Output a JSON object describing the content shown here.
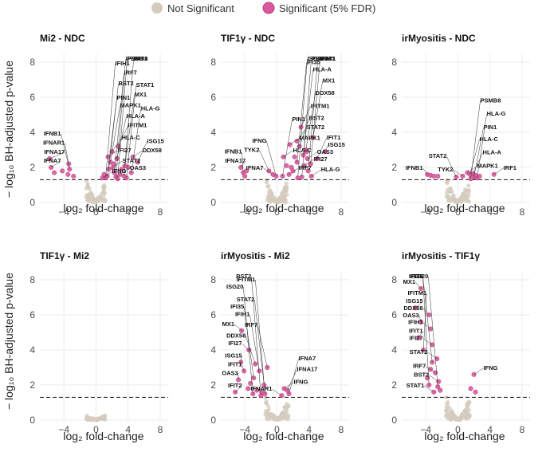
{
  "legend": [
    {
      "label": "Not Significant",
      "color": "#d4cbbd"
    },
    {
      "label": "Significant (5% FDR)",
      "color": "#d9599b"
    }
  ],
  "axis_titles": {
    "x": "log₂ fold-change",
    "y": "− log₁₀ BH-adjusted p-value"
  },
  "colors": {
    "ns": "#d4cbbd",
    "sig": "#d9599b",
    "sig_stroke": "#b53c7d",
    "threshold": "#333333",
    "grid": "#ebebeb"
  },
  "chart_data": [
    {
      "type": "scatter",
      "title": "Mi2 - NDC",
      "xlim": [
        -7,
        9
      ],
      "ylim": [
        0,
        8.5
      ],
      "xticks": [
        -4,
        0,
        4,
        8
      ],
      "yticks": [
        0,
        2,
        4,
        6,
        8
      ],
      "threshold": 1.3,
      "ns_cloud": {
        "spread": 1.2,
        "height": 1.3,
        "count": 90
      },
      "significant": [
        {
          "x": -5.8,
          "y": 2.5,
          "label": "IFNA17"
        },
        {
          "x": -5.6,
          "y": 2.0,
          "label": "IFNA7"
        },
        {
          "x": -3.4,
          "y": 2.2,
          "label": "IFNAR1"
        },
        {
          "x": -3.3,
          "y": 1.9,
          "label": "IFNB1"
        },
        {
          "x": -3.5,
          "y": 1.6,
          "label": ""
        },
        {
          "x": -4.2,
          "y": 1.8,
          "label": ""
        },
        {
          "x": -2.8,
          "y": 1.5,
          "label": ""
        },
        {
          "x": -5.2,
          "y": 1.7,
          "label": ""
        },
        {
          "x": 1.5,
          "y": 2.6,
          "label": "IFI27"
        },
        {
          "x": 2.0,
          "y": 2.9,
          "label": "HLA-C"
        },
        {
          "x": 2.8,
          "y": 3.2,
          "label": "IFITM1"
        },
        {
          "x": 2.6,
          "y": 2.5,
          "label": "HLA-A"
        },
        {
          "x": 1.8,
          "y": 2.3,
          "label": "MAPK1"
        },
        {
          "x": 2.1,
          "y": 2.0,
          "label": "STAT2"
        },
        {
          "x": 4.6,
          "y": 2.6,
          "label": "DDX58"
        },
        {
          "x": 3.6,
          "y": 2.1,
          "label": "MX1"
        },
        {
          "x": 5.2,
          "y": 2.3,
          "label": "ISG15"
        },
        {
          "x": 1.6,
          "y": 1.9,
          "label": "BST2"
        },
        {
          "x": 2.3,
          "y": 1.7,
          "label": "IRF7"
        },
        {
          "x": 3.0,
          "y": 1.6,
          "label": "OAS3"
        },
        {
          "x": 4.4,
          "y": 1.7,
          "label": "HLA-G"
        },
        {
          "x": 1.4,
          "y": 1.5,
          "label": "PIN1"
        },
        {
          "x": 1.2,
          "y": 1.4,
          "label": "IFIH1"
        },
        {
          "x": 2.5,
          "y": 1.45,
          "label": "IFI35"
        },
        {
          "x": 3.8,
          "y": 1.4,
          "label": "STAT1"
        },
        {
          "x": 3.5,
          "y": 1.5,
          "label": "IFIT1"
        },
        {
          "x": 2.7,
          "y": 1.35,
          "label": "PSMB8"
        },
        {
          "x": 0.8,
          "y": 1.4,
          "label": "IFNG"
        },
        {
          "x": 1.0,
          "y": 1.6,
          "label": ""
        },
        {
          "x": 3.2,
          "y": 1.9,
          "label": ""
        },
        {
          "x": 4.0,
          "y": 2.0,
          "label": ""
        },
        {
          "x": 2.2,
          "y": 2.2,
          "label": ""
        }
      ]
    },
    {
      "type": "scatter",
      "title": "TIF1γ - NDC",
      "xlim": [
        -7,
        9
      ],
      "ylim": [
        0,
        8.5
      ],
      "xticks": [
        -4,
        0,
        4,
        8
      ],
      "yticks": [
        0,
        2,
        4,
        6,
        8
      ],
      "threshold": 1.3,
      "ns_cloud": {
        "spread": 1.3,
        "height": 1.3,
        "count": 90
      },
      "significant": [
        {
          "x": -4.5,
          "y": 2.0,
          "label": "IFNA17"
        },
        {
          "x": -4.2,
          "y": 1.7,
          "label": "IFNB1"
        },
        {
          "x": -3.8,
          "y": 1.8,
          "label": ""
        },
        {
          "x": -4.0,
          "y": 1.5,
          "label": ""
        },
        {
          "x": -1.0,
          "y": 1.8,
          "label": "TYK2"
        },
        {
          "x": -0.5,
          "y": 1.6,
          "label": "IFNA7"
        },
        {
          "x": 0.8,
          "y": 2.6,
          "label": "HLA-C"
        },
        {
          "x": 1.6,
          "y": 3.3,
          "label": "MAPK1"
        },
        {
          "x": 2.5,
          "y": 3.5,
          "label": "STAT2"
        },
        {
          "x": 2.8,
          "y": 3.2,
          "label": "BST2"
        },
        {
          "x": 3.0,
          "y": 4.3,
          "label": "IFITM1"
        },
        {
          "x": 3.6,
          "y": 3.0,
          "label": "DDX58"
        },
        {
          "x": 4.5,
          "y": 3.7,
          "label": "MX1"
        },
        {
          "x": 3.8,
          "y": 2.5,
          "label": "OAS3"
        },
        {
          "x": 6.0,
          "y": 2.9,
          "label": "ISG15"
        },
        {
          "x": 5.0,
          "y": 2.5,
          "label": "IFIT1"
        },
        {
          "x": 3.3,
          "y": 2.7,
          "label": "HLA-A"
        },
        {
          "x": 2.5,
          "y": 2.3,
          "label": "IFI35"
        },
        {
          "x": 3.4,
          "y": 2.1,
          "label": "IFI27"
        },
        {
          "x": 4.2,
          "y": 2.2,
          "label": "IFIH1"
        },
        {
          "x": 3.9,
          "y": 1.8,
          "label": "STAT1"
        },
        {
          "x": 4.3,
          "y": 1.5,
          "label": "HLA-G"
        },
        {
          "x": 1.5,
          "y": 1.6,
          "label": "IRF7"
        },
        {
          "x": 0.7,
          "y": 1.5,
          "label": "PIN1"
        },
        {
          "x": 2.6,
          "y": 1.4,
          "label": "ISG20"
        },
        {
          "x": 3.1,
          "y": 1.45,
          "label": "PSMB8"
        },
        {
          "x": -0.1,
          "y": 1.5,
          "label": "IFNG"
        },
        {
          "x": 1.8,
          "y": 2.0,
          "label": ""
        },
        {
          "x": 2.0,
          "y": 1.8,
          "label": ""
        },
        {
          "x": 1.2,
          "y": 2.1,
          "label": ""
        },
        {
          "x": 2.2,
          "y": 2.6,
          "label": ""
        },
        {
          "x": 3.7,
          "y": 2.9,
          "label": ""
        }
      ]
    },
    {
      "type": "scatter",
      "title": "irMyositis - NDC",
      "xlim": [
        -7,
        9
      ],
      "ylim": [
        0,
        8.5
      ],
      "xticks": [
        -4,
        0,
        4,
        8
      ],
      "yticks": [
        0,
        2,
        4,
        6,
        8
      ],
      "threshold": 1.3,
      "ns_cloud": {
        "spread": 1.4,
        "height": 1.3,
        "count": 90
      },
      "significant": [
        {
          "x": -3.8,
          "y": 1.6,
          "label": "IFNB1"
        },
        {
          "x": -3.4,
          "y": 1.55,
          "label": ""
        },
        {
          "x": -3.0,
          "y": 1.5,
          "label": ""
        },
        {
          "x": -2.5,
          "y": 1.5,
          "label": ""
        },
        {
          "x": 1.2,
          "y": 1.7,
          "label": "MAPK1"
        },
        {
          "x": 1.9,
          "y": 1.65,
          "label": "HLA-A"
        },
        {
          "x": 1.5,
          "y": 1.6,
          "label": "HLA-C"
        },
        {
          "x": 0.6,
          "y": 1.5,
          "label": "TYK2"
        },
        {
          "x": -0.2,
          "y": 1.45,
          "label": "STAT2"
        },
        {
          "x": 2.0,
          "y": 1.45,
          "label": "PIN1"
        },
        {
          "x": 2.4,
          "y": 1.4,
          "label": "HLA-G"
        },
        {
          "x": 1.6,
          "y": 1.35,
          "label": "PSMB8"
        },
        {
          "x": 4.5,
          "y": 1.6,
          "label": "IRF1"
        },
        {
          "x": 2.2,
          "y": 1.55,
          "label": ""
        },
        {
          "x": 2.7,
          "y": 1.5,
          "label": ""
        }
      ]
    },
    {
      "type": "scatter",
      "title": "TIF1γ - Mi2",
      "xlim": [
        -7,
        9
      ],
      "ylim": [
        0,
        8.5
      ],
      "xticks": [
        -4,
        0,
        4,
        8
      ],
      "yticks": [
        0,
        2,
        4,
        6,
        8
      ],
      "threshold": 1.3,
      "ns_cloud": {
        "spread": 1.2,
        "height": 0.25,
        "count": 45
      },
      "significant": []
    },
    {
      "type": "scatter",
      "title": "irMyositis - Mi2",
      "xlim": [
        -7,
        9
      ],
      "ylim": [
        0,
        8.5
      ],
      "xticks": [
        -4,
        0,
        4,
        8
      ],
      "yticks": [
        0,
        2,
        4,
        6,
        8
      ],
      "threshold": 1.3,
      "ns_cloud": {
        "spread": 1.5,
        "height": 1.3,
        "count": 90
      },
      "significant": [
        {
          "x": -4.4,
          "y": 5.1,
          "label": "MX1"
        },
        {
          "x": -3.5,
          "y": 4.0,
          "label": "IFI27"
        },
        {
          "x": -4.5,
          "y": 3.3,
          "label": "ISG15"
        },
        {
          "x": -2.7,
          "y": 3.2,
          "label": "DDX58"
        },
        {
          "x": -4.1,
          "y": 2.8,
          "label": "IFIT1"
        },
        {
          "x": -1.2,
          "y": 3.0,
          "label": "IRF7"
        },
        {
          "x": -2.2,
          "y": 2.8,
          "label": "IFIH1"
        },
        {
          "x": -4.8,
          "y": 2.3,
          "label": "OAS3"
        },
        {
          "x": -2.9,
          "y": 2.4,
          "label": "IFI35"
        },
        {
          "x": -1.6,
          "y": 2.0,
          "label": "STAT2"
        },
        {
          "x": -5.2,
          "y": 1.6,
          "label": "IFIT2"
        },
        {
          "x": -3.0,
          "y": 1.5,
          "label": "ISG20"
        },
        {
          "x": -1.5,
          "y": 1.5,
          "label": "IFITM1"
        },
        {
          "x": -2.0,
          "y": 1.4,
          "label": "BST2"
        },
        {
          "x": 0.9,
          "y": 1.8,
          "label": "IFNG"
        },
        {
          "x": 1.3,
          "y": 1.7,
          "label": "IFNA17"
        },
        {
          "x": 1.5,
          "y": 1.5,
          "label": "IFNA7"
        },
        {
          "x": 0.6,
          "y": 1.4,
          "label": "IFNAR1"
        },
        {
          "x": -3.6,
          "y": 1.8,
          "label": ""
        },
        {
          "x": -2.5,
          "y": 1.7,
          "label": ""
        },
        {
          "x": -3.3,
          "y": 2.1,
          "label": ""
        },
        {
          "x": -1.9,
          "y": 1.6,
          "label": ""
        }
      ]
    },
    {
      "type": "scatter",
      "title": "irMyositis - TIF1γ",
      "xlim": [
        -7,
        9
      ],
      "ylim": [
        0,
        8.5
      ],
      "xticks": [
        -4,
        0,
        4,
        8
      ],
      "yticks": [
        0,
        2,
        4,
        6,
        8
      ],
      "threshold": 1.3,
      "ns_cloud": {
        "spread": 1.5,
        "height": 1.3,
        "count": 90
      },
      "significant": [
        {
          "x": -4.6,
          "y": 7.5,
          "label": "MX1"
        },
        {
          "x": -5.3,
          "y": 6.4,
          "label": "ISG15"
        },
        {
          "x": -3.6,
          "y": 6.0,
          "label": "DDX58"
        },
        {
          "x": -4.6,
          "y": 5.6,
          "label": "OAS3"
        },
        {
          "x": -3.4,
          "y": 5.2,
          "label": "IFIH1"
        },
        {
          "x": -4.9,
          "y": 4.7,
          "label": "IFIT1"
        },
        {
          "x": -3.2,
          "y": 4.3,
          "label": "IFI27"
        },
        {
          "x": -4.3,
          "y": 4.0,
          "label": "IFITM1"
        },
        {
          "x": -2.6,
          "y": 3.5,
          "label": "STAT2"
        },
        {
          "x": -3.2,
          "y": 3.3,
          "label": "IFI35"
        },
        {
          "x": -2.8,
          "y": 2.7,
          "label": "IRF7"
        },
        {
          "x": -2.4,
          "y": 2.2,
          "label": "BST2"
        },
        {
          "x": -3.6,
          "y": 2.0,
          "label": "IFIT2"
        },
        {
          "x": -2.5,
          "y": 1.9,
          "label": "ISG20"
        },
        {
          "x": -3.0,
          "y": 1.6,
          "label": "STAT1"
        },
        {
          "x": 2.0,
          "y": 2.6,
          "label": "IFNG"
        },
        {
          "x": 1.6,
          "y": 1.8,
          "label": ""
        },
        {
          "x": 2.2,
          "y": 1.6,
          "label": ""
        },
        {
          "x": -3.8,
          "y": 2.4,
          "label": ""
        },
        {
          "x": -2.2,
          "y": 1.7,
          "label": ""
        },
        {
          "x": -3.4,
          "y": 2.9,
          "label": ""
        }
      ]
    }
  ]
}
